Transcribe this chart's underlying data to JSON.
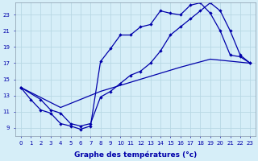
{
  "xlabel": "Graphe des températures (°c)",
  "background_color": "#d6eef8",
  "grid_color": "#b8d8e4",
  "line_color": "#0000aa",
  "xlim": [
    -0.5,
    23.5
  ],
  "ylim": [
    8.0,
    24.5
  ],
  "xticks": [
    0,
    1,
    2,
    3,
    4,
    5,
    6,
    7,
    8,
    9,
    10,
    11,
    12,
    13,
    14,
    15,
    16,
    17,
    18,
    19,
    20,
    21,
    22,
    23
  ],
  "yticks": [
    9,
    11,
    13,
    15,
    17,
    19,
    21,
    23
  ],
  "curve1_x": [
    0,
    1,
    2,
    3,
    4,
    5,
    6,
    7,
    8,
    9,
    10,
    11,
    12,
    13,
    14,
    15,
    16,
    17,
    18,
    19,
    20,
    21,
    22,
    23
  ],
  "curve1_y": [
    14.0,
    12.5,
    11.2,
    10.8,
    9.5,
    9.2,
    8.8,
    9.2,
    17.2,
    18.8,
    20.5,
    20.5,
    21.5,
    21.8,
    23.5,
    23.2,
    23.0,
    24.2,
    24.5,
    23.2,
    21.0,
    18.0,
    17.8,
    17.0
  ],
  "curve2_x": [
    0,
    2,
    3,
    4,
    5,
    6,
    7,
    8,
    9,
    10,
    11,
    12,
    13,
    14,
    15,
    16,
    17,
    18,
    19,
    20,
    21,
    22,
    23
  ],
  "curve2_y": [
    14.0,
    12.5,
    11.2,
    10.8,
    9.5,
    9.2,
    9.5,
    12.8,
    13.5,
    14.5,
    15.5,
    16.0,
    17.0,
    18.5,
    20.5,
    21.5,
    22.5,
    23.5,
    24.5,
    23.5,
    21.0,
    18.0,
    17.0
  ],
  "curve3_x": [
    0,
    4,
    8,
    12,
    16,
    19,
    23
  ],
  "curve3_y": [
    14.0,
    11.5,
    13.5,
    15.0,
    16.5,
    17.5,
    17.0
  ]
}
